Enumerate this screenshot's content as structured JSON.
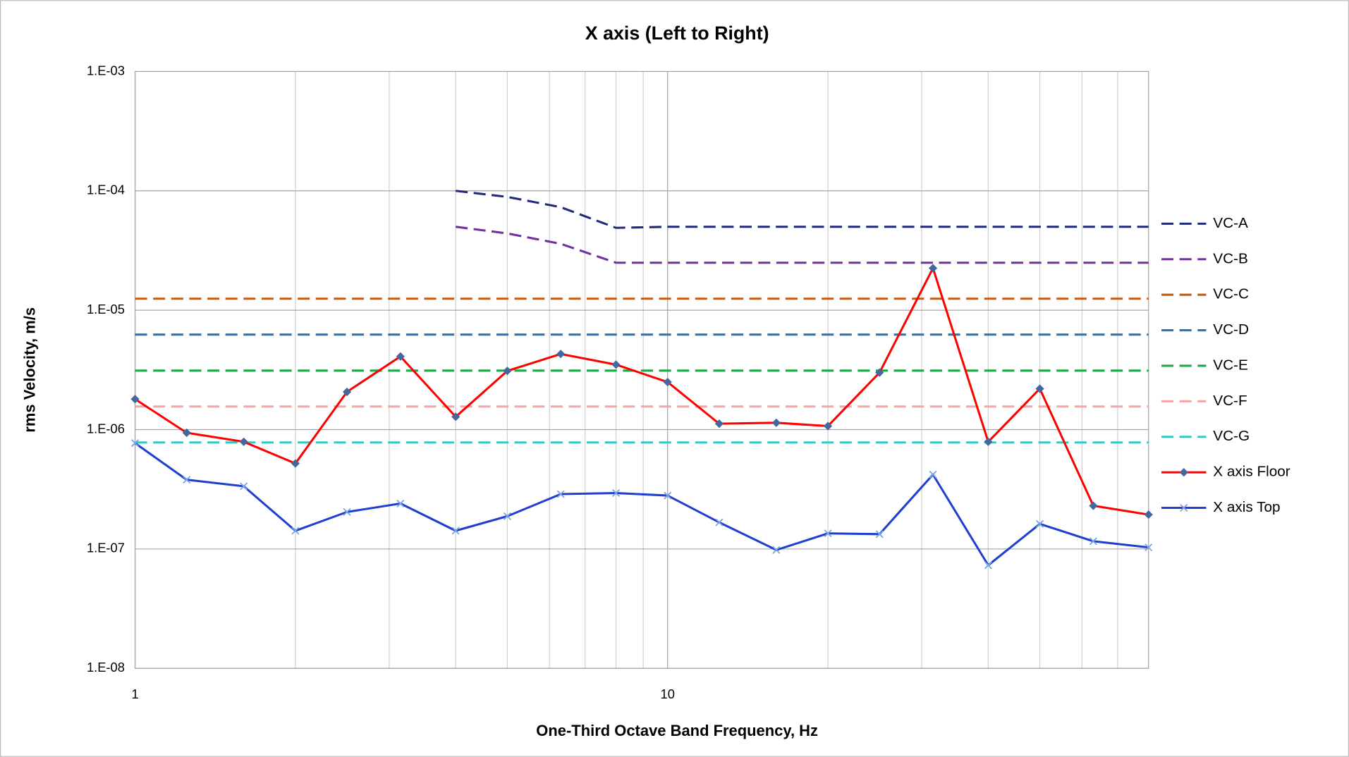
{
  "chart_data": {
    "type": "line",
    "title": "X axis  (Left to Right)",
    "xlabel": "One-Third Octave Band Frequency, Hz",
    "ylabel": "rms Velocity, m/s",
    "xscale": "log",
    "yscale": "log",
    "grid": true,
    "legend": "right",
    "xlim": [
      1,
      80
    ],
    "ylim": [
      1e-08,
      0.001
    ],
    "xticks": [
      1,
      10
    ],
    "xminorticks": [
      2,
      3,
      4,
      5,
      6,
      7,
      8,
      9,
      20,
      30,
      40,
      50,
      60,
      70
    ],
    "yticks": [
      {
        "value": 1e-08,
        "label": "1.E-08"
      },
      {
        "value": 1e-07,
        "label": "1.E-07"
      },
      {
        "value": 1e-06,
        "label": "1.E-06"
      },
      {
        "value": 1e-05,
        "label": "1.E-05"
      },
      {
        "value": 0.0001,
        "label": "1.E-04"
      },
      {
        "value": 0.001,
        "label": "1.E-03"
      }
    ],
    "x": [
      1,
      1.25,
      1.6,
      2,
      2.5,
      3.15,
      4,
      5,
      6.3,
      8,
      10,
      12.5,
      16,
      20,
      25,
      31.5,
      40,
      50,
      63,
      80
    ],
    "series": [
      {
        "name": "VC-A",
        "color": "#1f2a7a",
        "dash": true,
        "values": [
          null,
          null,
          null,
          null,
          null,
          null,
          0.0001,
          8.9e-05,
          7.3e-05,
          4.9e-05,
          5e-05,
          5e-05,
          5e-05,
          5e-05,
          5e-05,
          5e-05,
          5e-05,
          5e-05,
          5e-05,
          5e-05
        ]
      },
      {
        "name": "VC-B",
        "color": "#7030a0",
        "dash": true,
        "values": [
          null,
          null,
          null,
          null,
          null,
          null,
          5e-05,
          4.4e-05,
          3.6e-05,
          2.5e-05,
          2.5e-05,
          2.5e-05,
          2.5e-05,
          2.5e-05,
          2.5e-05,
          2.5e-05,
          2.5e-05,
          2.5e-05,
          2.5e-05,
          2.5e-05
        ]
      },
      {
        "name": "VC-C",
        "color": "#c55a11",
        "dash": true,
        "values": [
          1.25e-05,
          1.25e-05,
          1.25e-05,
          1.25e-05,
          1.25e-05,
          1.25e-05,
          1.25e-05,
          1.25e-05,
          1.25e-05,
          1.25e-05,
          1.25e-05,
          1.25e-05,
          1.25e-05,
          1.25e-05,
          1.25e-05,
          1.25e-05,
          1.25e-05,
          1.25e-05,
          1.25e-05,
          1.25e-05
        ]
      },
      {
        "name": "VC-D",
        "color": "#2e75b6",
        "dash": true,
        "values": [
          6.25e-06,
          6.25e-06,
          6.25e-06,
          6.25e-06,
          6.25e-06,
          6.25e-06,
          6.25e-06,
          6.25e-06,
          6.25e-06,
          6.25e-06,
          6.25e-06,
          6.25e-06,
          6.25e-06,
          6.25e-06,
          6.25e-06,
          6.25e-06,
          6.25e-06,
          6.25e-06,
          6.25e-06,
          6.25e-06
        ]
      },
      {
        "name": "VC-E",
        "color": "#1fa84a",
        "dash": true,
        "values": [
          3.12e-06,
          3.12e-06,
          3.12e-06,
          3.12e-06,
          3.12e-06,
          3.12e-06,
          3.12e-06,
          3.12e-06,
          3.12e-06,
          3.12e-06,
          3.12e-06,
          3.12e-06,
          3.12e-06,
          3.12e-06,
          3.12e-06,
          3.12e-06,
          3.12e-06,
          3.12e-06,
          3.12e-06,
          3.12e-06
        ]
      },
      {
        "name": "VC-F",
        "color": "#f4a6a6",
        "dash": true,
        "values": [
          1.56e-06,
          1.56e-06,
          1.56e-06,
          1.56e-06,
          1.56e-06,
          1.56e-06,
          1.56e-06,
          1.56e-06,
          1.56e-06,
          1.56e-06,
          1.56e-06,
          1.56e-06,
          1.56e-06,
          1.56e-06,
          1.56e-06,
          1.56e-06,
          1.56e-06,
          1.56e-06,
          1.56e-06,
          1.56e-06
        ]
      },
      {
        "name": "VC-G",
        "color": "#33c7c7",
        "dash": true,
        "values": [
          7.8e-07,
          7.8e-07,
          7.8e-07,
          7.8e-07,
          7.8e-07,
          7.8e-07,
          7.8e-07,
          7.8e-07,
          7.8e-07,
          7.8e-07,
          7.8e-07,
          7.8e-07,
          7.8e-07,
          7.8e-07,
          7.8e-07,
          7.8e-07,
          7.8e-07,
          7.8e-07,
          7.8e-07,
          7.8e-07
        ]
      },
      {
        "name": "X axis Floor",
        "color": "#ff0000",
        "marker": "diamond",
        "marker_color": "#46679e",
        "values": [
          1.8e-06,
          9.4e-07,
          7.9e-07,
          5.2e-07,
          2.07e-06,
          4.1e-06,
          1.28e-06,
          3.1e-06,
          4.3e-06,
          3.5e-06,
          2.5e-06,
          1.12e-06,
          1.14e-06,
          1.07e-06,
          3e-06,
          2.25e-05,
          7.9e-07,
          2.2e-06,
          2.3e-07,
          1.94e-07
        ]
      },
      {
        "name": "X axis Top",
        "color": "#1f3fcf",
        "marker": "x",
        "marker_color": "#7aa6e0",
        "values": [
          7.7e-07,
          3.8e-07,
          3.35e-07,
          1.42e-07,
          2.04e-07,
          2.4e-07,
          1.42e-07,
          1.88e-07,
          2.88e-07,
          2.94e-07,
          2.8e-07,
          1.67e-07,
          9.8e-08,
          1.35e-07,
          1.33e-07,
          4.2e-07,
          7.3e-08,
          1.62e-07,
          1.16e-07,
          1.03e-07
        ]
      }
    ]
  }
}
